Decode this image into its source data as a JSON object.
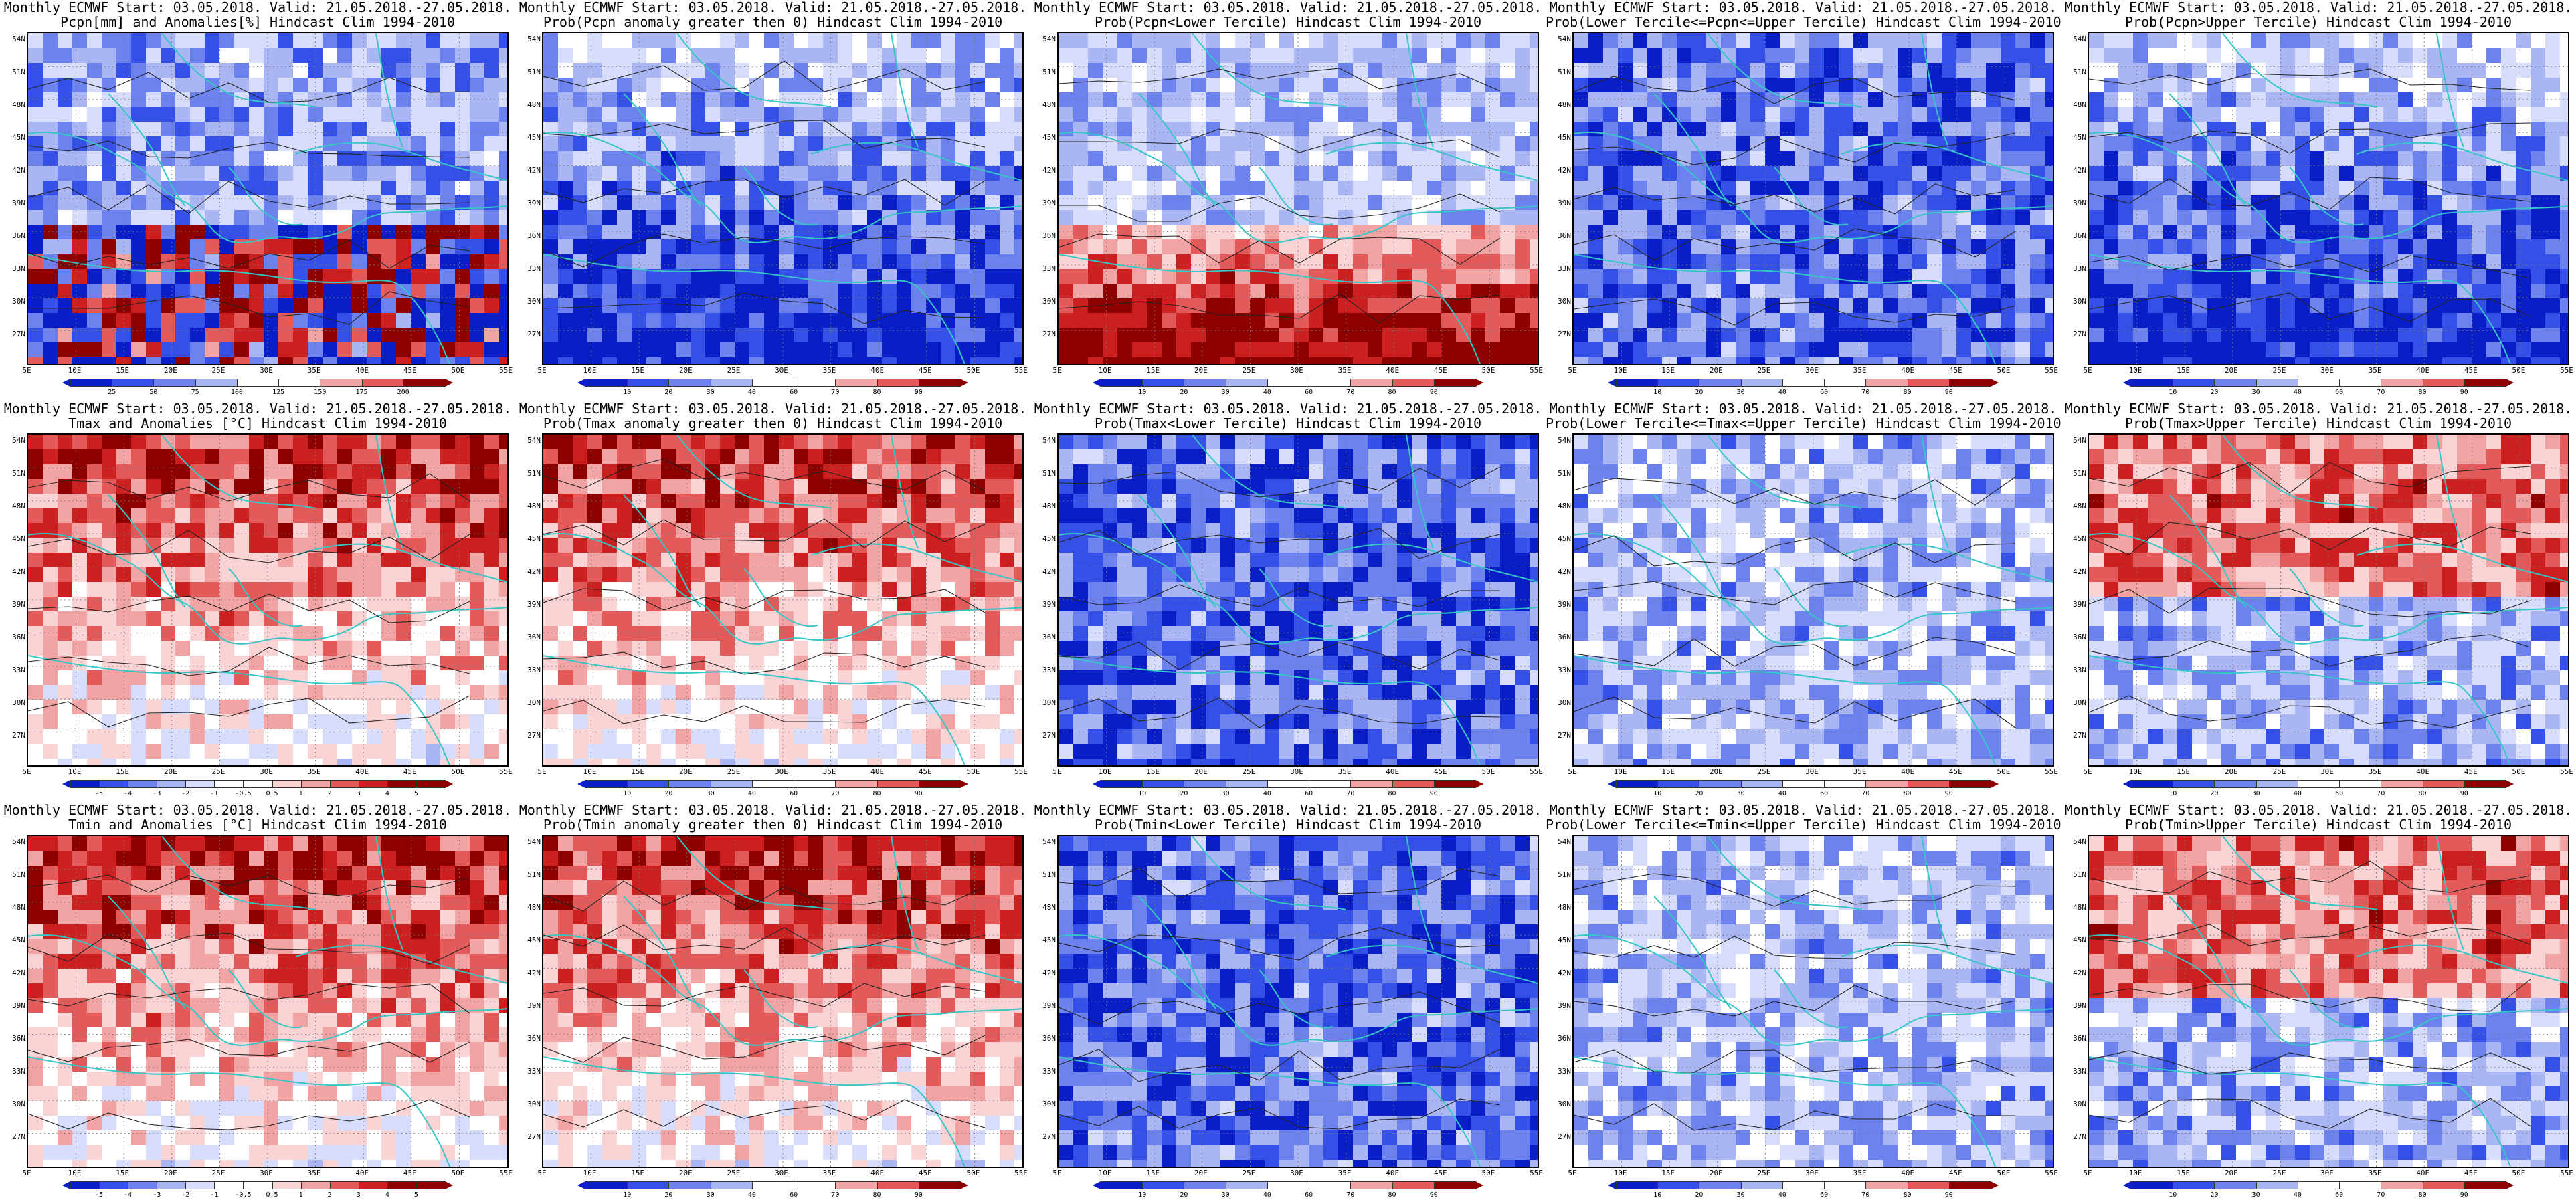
{
  "colors": {
    "blue_dark": "#0a1ec8",
    "blue": "#3550e6",
    "blue_mid": "#6c82ee",
    "blue_light": "#aab6f4",
    "blue_pale": "#d6dcfa",
    "white": "#ffffff",
    "red_pale": "#fad4d4",
    "red_light": "#f2a3a3",
    "red": "#e35a5a",
    "red_mid": "#cc2020",
    "red_dark": "#8c0000",
    "coast": "#36c6c6",
    "contour": "#222222"
  },
  "axes": {
    "lat_labels": [
      "54N",
      "51N",
      "48N",
      "45N",
      "42N",
      "39N",
      "36N",
      "33N",
      "30N",
      "27N"
    ],
    "lon_labels": [
      "5E",
      "10E",
      "15E",
      "20E",
      "25E",
      "30E",
      "35E",
      "40E",
      "45E",
      "50E",
      "55E"
    ]
  },
  "legends": {
    "pcpn_anom": [
      "25",
      "50",
      "75",
      "100",
      "125",
      "150",
      "175",
      "200"
    ],
    "prob": [
      "10",
      "20",
      "30",
      "40",
      "60",
      "70",
      "80",
      "90"
    ],
    "temp_anom": [
      "-5",
      "-4",
      "-3",
      "-2",
      "-1",
      "-0.5",
      "0.5",
      "1",
      "2",
      "3",
      "4",
      "5"
    ]
  },
  "panels": [
    {
      "title1": "Monthly ECMWF Start: 03.05.2018. Valid: 21.05.2018.-27.05.2018.",
      "title2": "Pcpn[mm] and Anomalies[%] Hindcast Clim 1994-2010",
      "scheme": "pcpn_anom",
      "pattern": "mix",
      "legend": "pcpn_anom"
    },
    {
      "title1": "Monthly ECMWF Start: 03.05.2018. Valid: 21.05.2018.-27.05.2018.",
      "title2": "Prob(Pcpn anomaly greater then 0) Hindcast Clim 1994-2010",
      "scheme": "prob",
      "pattern": "blue_s",
      "legend": "prob"
    },
    {
      "title1": "Monthly ECMWF Start: 03.05.2018. Valid: 21.05.2018.-27.05.2018.",
      "title2": "Prob(Pcpn<Lower Tercile) Hindcast Clim 1994-2010",
      "scheme": "prob",
      "pattern": "red_s",
      "legend": "prob"
    },
    {
      "title1": "Monthly ECMWF Start: 03.05.2018. Valid: 21.05.2018.-27.05.2018.",
      "title2": "Prob(Lower Tercile<=Pcpn<=Upper Tercile) Hindcast Clim 1994-2010",
      "scheme": "prob",
      "pattern": "blue_all",
      "legend": "prob"
    },
    {
      "title1": "Monthly ECMWF Start: 03.05.2018. Valid: 21.05.2018.-27.05.2018.",
      "title2": "Prob(Pcpn>Upper Tercile) Hindcast Clim 1994-2010",
      "scheme": "prob",
      "pattern": "blue_s",
      "legend": "prob"
    },
    {
      "title1": "Monthly ECMWF Start: 03.05.2018. Valid: 21.05.2018.-27.05.2018.",
      "title2": "Tmax and Anomalies [°C] Hindcast Clim 1994-2010",
      "scheme": "temp",
      "pattern": "red_n",
      "legend": "temp_anom"
    },
    {
      "title1": "Monthly ECMWF Start: 03.05.2018. Valid: 21.05.2018.-27.05.2018.",
      "title2": "Prob(Tmax anomaly greater then 0) Hindcast Clim 1994-2010",
      "scheme": "prob",
      "pattern": "red_n",
      "legend": "prob"
    },
    {
      "title1": "Monthly ECMWF Start: 03.05.2018. Valid: 21.05.2018.-27.05.2018.",
      "title2": "Prob(Tmax<Lower Tercile) Hindcast Clim 1994-2010",
      "scheme": "prob",
      "pattern": "blue_all",
      "legend": "prob"
    },
    {
      "title1": "Monthly ECMWF Start: 03.05.2018. Valid: 21.05.2018.-27.05.2018.",
      "title2": "Prob(Lower Tercile<=Tmax<=Upper Tercile) Hindcast Clim 1994-2010",
      "scheme": "prob",
      "pattern": "blue_light",
      "legend": "prob"
    },
    {
      "title1": "Monthly ECMWF Start: 03.05.2018. Valid: 21.05.2018.-27.05.2018.",
      "title2": "Prob(Tmax>Upper Tercile) Hindcast Clim 1994-2010",
      "scheme": "prob",
      "pattern": "mix_rb",
      "legend": "prob"
    },
    {
      "title1": "Monthly ECMWF Start: 03.05.2018. Valid: 21.05.2018.-27.05.2018.",
      "title2": "Tmin and Anomalies [°C] Hindcast Clim 1994-2010",
      "scheme": "temp",
      "pattern": "red_n",
      "legend": "temp_anom"
    },
    {
      "title1": "Monthly ECMWF Start: 03.05.2018. Valid: 21.05.2018.-27.05.2018.",
      "title2": "Prob(Tmin anomaly greater then 0) Hindcast Clim 1994-2010",
      "scheme": "prob",
      "pattern": "red_n",
      "legend": "prob"
    },
    {
      "title1": "Monthly ECMWF Start: 03.05.2018. Valid: 21.05.2018.-27.05.2018.",
      "title2": "Prob(Tmin<Lower Tercile) Hindcast Clim 1994-2010",
      "scheme": "prob",
      "pattern": "blue_all",
      "legend": "prob"
    },
    {
      "title1": "Monthly ECMWF Start: 03.05.2018. Valid: 21.05.2018.-27.05.2018.",
      "title2": "Prob(Lower Tercile<=Tmin<=Upper Tercile) Hindcast Clim 1994-2010",
      "scheme": "prob",
      "pattern": "blue_light",
      "legend": "prob"
    },
    {
      "title1": "Monthly ECMWF Start: 03.05.2018. Valid: 21.05.2018.-27.05.2018.",
      "title2": "Prob(Tmin>Upper Tercile) Hindcast Clim 1994-2010",
      "scheme": "prob",
      "pattern": "mix_rb",
      "legend": "prob"
    }
  ]
}
